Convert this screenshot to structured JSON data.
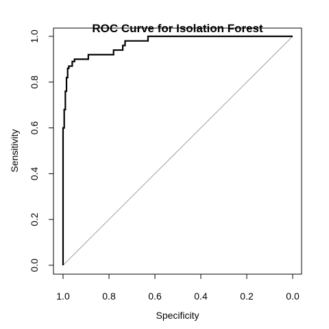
{
  "chart_data": {
    "type": "line",
    "title": "ROC Curve for Isolation Forest",
    "xlabel": "Specificity",
    "ylabel": "Sensitivity",
    "x_reversed": true,
    "xlim": [
      1.0,
      0.0
    ],
    "ylim": [
      0.0,
      1.0
    ],
    "x_ticks": [
      1.0,
      0.8,
      0.6,
      0.4,
      0.2,
      0.0
    ],
    "x_tick_labels": [
      "1.0",
      "0.8",
      "0.6",
      "0.4",
      "0.2",
      "0.0"
    ],
    "y_ticks": [
      0.0,
      0.2,
      0.4,
      0.6,
      0.8,
      1.0
    ],
    "y_tick_labels": [
      "0.0",
      "0.2",
      "0.4",
      "0.6",
      "0.8",
      "1.0"
    ],
    "grid": false,
    "series": [
      {
        "specificity": [
          1.0,
          1.0,
          0.995,
          0.995,
          0.99,
          0.99,
          0.985,
          0.985,
          0.98,
          0.98,
          0.975,
          0.975,
          0.96,
          0.96,
          0.95,
          0.95,
          0.89,
          0.89,
          0.78,
          0.78,
          0.74,
          0.74,
          0.73,
          0.73,
          0.63,
          0.63,
          0.0
        ],
        "sensitivity": [
          0.0,
          0.6,
          0.6,
          0.68,
          0.68,
          0.76,
          0.76,
          0.82,
          0.82,
          0.86,
          0.86,
          0.87,
          0.87,
          0.89,
          0.89,
          0.9,
          0.9,
          0.92,
          0.92,
          0.94,
          0.94,
          0.96,
          0.96,
          0.98,
          0.98,
          1.0,
          1.0
        ],
        "color": "#000000"
      }
    ],
    "reference_line": {
      "from": [
        1.0,
        0.0
      ],
      "to": [
        0.0,
        1.0
      ],
      "color": "#a0a0a0"
    }
  }
}
